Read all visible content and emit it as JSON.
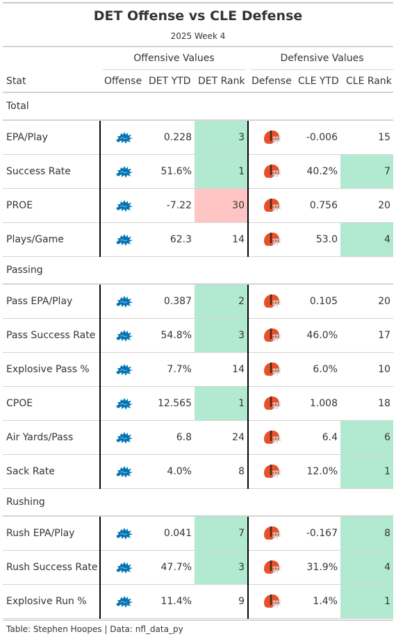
{
  "title": "DET Offense vs CLE Defense",
  "subtitle": "2025 Week 4",
  "spanners": {
    "offense": "Offensive Values",
    "defense": "Defensive Values"
  },
  "columns": {
    "stat": "Stat",
    "offense": "Offense",
    "det_ytd": "DET YTD",
    "det_rank": "DET Rank",
    "defense": "Defense",
    "cle_ytd": "CLE YTD",
    "cle_rank": "CLE Rank"
  },
  "colors": {
    "good": "#b2ead1",
    "bad": "#ffc4c4",
    "lions_blue": "#0076b6",
    "browns_orange": "#e8502a",
    "browns_brown": "#4b2a16"
  },
  "groups": [
    {
      "name": "Total",
      "rows": [
        {
          "stat": "EPA/Play",
          "det_ytd": "0.228",
          "det_rank": "3",
          "det_rank_hl": "good",
          "cle_ytd": "-0.006",
          "cle_rank": "15",
          "cle_rank_hl": ""
        },
        {
          "stat": "Success Rate",
          "det_ytd": "51.6%",
          "det_rank": "1",
          "det_rank_hl": "good",
          "cle_ytd": "40.2%",
          "cle_rank": "7",
          "cle_rank_hl": "good"
        },
        {
          "stat": "PROE",
          "det_ytd": "-7.22",
          "det_rank": "30",
          "det_rank_hl": "bad",
          "cle_ytd": "0.756",
          "cle_rank": "20",
          "cle_rank_hl": ""
        },
        {
          "stat": "Plays/Game",
          "det_ytd": "62.3",
          "det_rank": "14",
          "det_rank_hl": "",
          "cle_ytd": "53.0",
          "cle_rank": "4",
          "cle_rank_hl": "good"
        }
      ]
    },
    {
      "name": "Passing",
      "rows": [
        {
          "stat": "Pass EPA/Play",
          "det_ytd": "0.387",
          "det_rank": "2",
          "det_rank_hl": "good",
          "cle_ytd": "0.105",
          "cle_rank": "20",
          "cle_rank_hl": ""
        },
        {
          "stat": "Pass Success Rate",
          "det_ytd": "54.8%",
          "det_rank": "3",
          "det_rank_hl": "good",
          "cle_ytd": "46.0%",
          "cle_rank": "17",
          "cle_rank_hl": ""
        },
        {
          "stat": "Explosive Pass %",
          "det_ytd": "7.7%",
          "det_rank": "14",
          "det_rank_hl": "",
          "cle_ytd": "6.0%",
          "cle_rank": "10",
          "cle_rank_hl": ""
        },
        {
          "stat": "CPOE",
          "det_ytd": "12.565",
          "det_rank": "1",
          "det_rank_hl": "good",
          "cle_ytd": "1.008",
          "cle_rank": "18",
          "cle_rank_hl": ""
        },
        {
          "stat": "Air Yards/Pass",
          "det_ytd": "6.8",
          "det_rank": "24",
          "det_rank_hl": "",
          "cle_ytd": "6.4",
          "cle_rank": "6",
          "cle_rank_hl": "good"
        },
        {
          "stat": "Sack Rate",
          "det_ytd": "4.0%",
          "det_rank": "8",
          "det_rank_hl": "",
          "cle_ytd": "12.0%",
          "cle_rank": "1",
          "cle_rank_hl": "good"
        }
      ]
    },
    {
      "name": "Rushing",
      "rows": [
        {
          "stat": "Rush EPA/Play",
          "det_ytd": "0.041",
          "det_rank": "7",
          "det_rank_hl": "good",
          "cle_ytd": "-0.167",
          "cle_rank": "8",
          "cle_rank_hl": "good"
        },
        {
          "stat": "Rush Success Rate",
          "det_ytd": "47.7%",
          "det_rank": "3",
          "det_rank_hl": "good",
          "cle_ytd": "31.9%",
          "cle_rank": "4",
          "cle_rank_hl": "good"
        },
        {
          "stat": "Explosive Run %",
          "det_ytd": "11.4%",
          "det_rank": "9",
          "det_rank_hl": "",
          "cle_ytd": "1.4%",
          "cle_rank": "1",
          "cle_rank_hl": "good"
        }
      ]
    }
  ],
  "footer": "Table: Stephen Hoopes | Data: nfl_data_py"
}
